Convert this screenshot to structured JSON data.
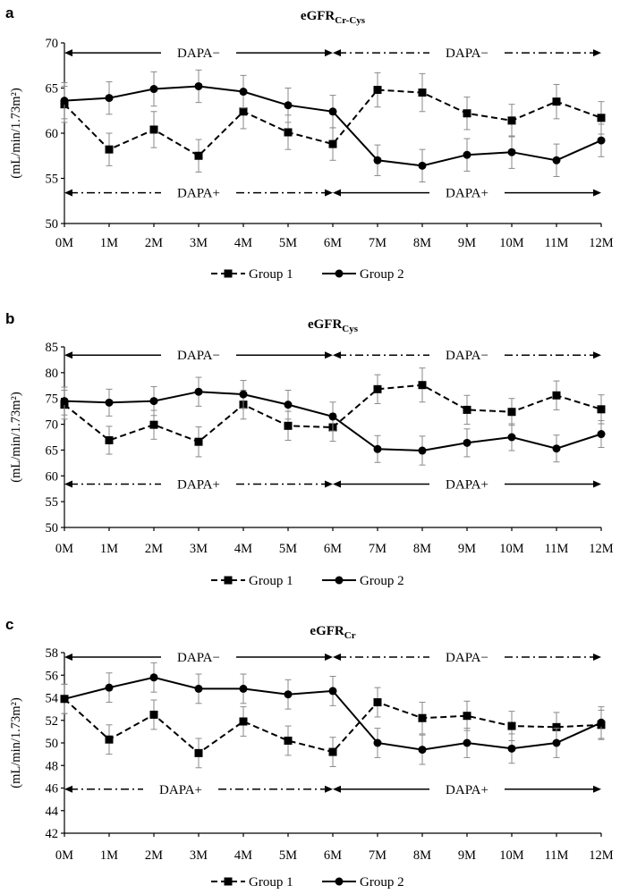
{
  "chart_data": [
    {
      "panel": "a",
      "type": "line",
      "title_main": "eGFR",
      "title_sub": "Cr-Cys",
      "ylabel": "(mL/min/1.73m²)",
      "ylim": [
        50,
        70
      ],
      "yticks": [
        "50",
        "55",
        "60",
        "65",
        "70"
      ],
      "categories": [
        "0M",
        "1M",
        "2M",
        "3M",
        "4M",
        "5M",
        "6M",
        "7M",
        "8M",
        "9M",
        "10M",
        "11M",
        "12M"
      ],
      "series": [
        {
          "name": "Group 1",
          "marker": "square",
          "line": "dashed",
          "values": [
            63.2,
            58.2,
            60.4,
            57.5,
            62.4,
            60.1,
            58.8,
            64.8,
            64.5,
            62.2,
            61.4,
            63.5,
            61.7
          ],
          "errors": [
            2.0,
            1.8,
            2.0,
            1.8,
            1.9,
            1.9,
            1.8,
            1.9,
            2.1,
            1.8,
            1.8,
            1.9,
            1.8
          ]
        },
        {
          "name": "Group 2",
          "marker": "circle",
          "line": "solid",
          "values": [
            63.6,
            63.9,
            64.9,
            65.2,
            64.6,
            63.1,
            62.4,
            57.0,
            56.4,
            57.6,
            57.9,
            57.0,
            59.2
          ],
          "errors": [
            2.0,
            1.8,
            1.9,
            1.8,
            1.8,
            1.9,
            1.8,
            1.7,
            1.8,
            1.8,
            1.8,
            1.8,
            1.8
          ]
        }
      ],
      "phases": [
        {
          "label": "DAPA−",
          "row": "top",
          "from": 0,
          "to": 6,
          "style": "solid",
          "label_at": 3
        },
        {
          "label": "DAPA−",
          "row": "top",
          "from": 6,
          "to": 12,
          "style": "dashdot",
          "label_at": 9
        },
        {
          "label": "DAPA+",
          "row": "bottom",
          "from": 0,
          "to": 6,
          "style": "dashdot",
          "label_at": 3
        },
        {
          "label": "DAPA+",
          "row": "bottom",
          "from": 6,
          "to": 12,
          "style": "solid",
          "label_at": 9
        }
      ],
      "phase_rows": {
        "top": 68.9,
        "bottom": 53.4
      }
    },
    {
      "panel": "b",
      "type": "line",
      "title_main": "eGFR",
      "title_sub": "Cys",
      "ylabel": "(mL/min/1.73m²)",
      "ylim": [
        50,
        85
      ],
      "yticks": [
        "50",
        "55",
        "60",
        "65",
        "70",
        "75",
        "80",
        "85"
      ],
      "categories": [
        "0M",
        "1M",
        "2M",
        "3M",
        "4M",
        "5M",
        "6M",
        "7M",
        "8M",
        "9M",
        "10M",
        "11M",
        "12M"
      ],
      "series": [
        {
          "name": "Group 1",
          "marker": "square",
          "line": "dashed",
          "values": [
            73.8,
            66.9,
            69.9,
            66.6,
            73.8,
            69.7,
            69.4,
            76.8,
            77.6,
            72.8,
            72.4,
            75.6,
            72.9
          ],
          "errors": [
            2.8,
            2.7,
            2.8,
            2.9,
            2.8,
            2.8,
            2.7,
            2.8,
            3.3,
            2.8,
            2.6,
            2.8,
            2.8
          ]
        },
        {
          "name": "Group 2",
          "marker": "circle",
          "line": "solid",
          "values": [
            74.5,
            74.2,
            74.5,
            76.3,
            75.8,
            73.8,
            71.5,
            65.2,
            64.9,
            66.4,
            67.5,
            65.3,
            68.1
          ],
          "errors": [
            2.7,
            2.6,
            2.8,
            2.8,
            2.7,
            2.8,
            2.8,
            2.6,
            2.8,
            2.7,
            2.6,
            2.6,
            2.6
          ]
        }
      ],
      "phases": [
        {
          "label": "DAPA−",
          "row": "top",
          "from": 0,
          "to": 6,
          "style": "solid",
          "label_at": 3
        },
        {
          "label": "DAPA−",
          "row": "top",
          "from": 6,
          "to": 12,
          "style": "dashdot",
          "label_at": 9
        },
        {
          "label": "DAPA+",
          "row": "bottom",
          "from": 0,
          "to": 6,
          "style": "dashdot",
          "label_at": 3
        },
        {
          "label": "DAPA+",
          "row": "bottom",
          "from": 6,
          "to": 12,
          "style": "solid",
          "label_at": 9
        }
      ],
      "phase_rows": {
        "top": 83.4,
        "bottom": 58.4
      }
    },
    {
      "panel": "c",
      "type": "line",
      "title_main": "eGFR",
      "title_sub": "Cr",
      "ylabel": "(mL/min/1.73m²)",
      "ylim": [
        42,
        58
      ],
      "yticks": [
        "42",
        "44",
        "46",
        "48",
        "50",
        "52",
        "54",
        "56",
        "58"
      ],
      "categories": [
        "0M",
        "1M",
        "2M",
        "3M",
        "4M",
        "5M",
        "6M",
        "7M",
        "8M",
        "9M",
        "10M",
        "11M",
        "12M"
      ],
      "series": [
        {
          "name": "Group 1",
          "marker": "square",
          "line": "dashed",
          "values": [
            53.9,
            50.3,
            52.5,
            49.1,
            51.9,
            50.2,
            49.2,
            53.6,
            52.2,
            52.4,
            51.5,
            51.4,
            51.6
          ],
          "errors": [
            1.3,
            1.3,
            1.3,
            1.3,
            1.3,
            1.3,
            1.3,
            1.3,
            1.4,
            1.3,
            1.3,
            1.3,
            1.3
          ]
        },
        {
          "name": "Group 2",
          "marker": "circle",
          "line": "solid",
          "values": [
            53.9,
            54.9,
            55.8,
            54.8,
            54.8,
            54.3,
            54.6,
            50.0,
            49.4,
            50.0,
            49.5,
            50.0,
            51.8
          ],
          "errors": [
            1.3,
            1.3,
            1.3,
            1.3,
            1.3,
            1.3,
            1.3,
            1.3,
            1.3,
            1.3,
            1.3,
            1.3,
            1.4
          ]
        }
      ],
      "phases": [
        {
          "label": "DAPA−",
          "row": "top",
          "from": 0,
          "to": 6,
          "style": "solid",
          "label_at": 3
        },
        {
          "label": "DAPA−",
          "row": "top",
          "from": 6,
          "to": 12,
          "style": "dashdot",
          "label_at": 9
        },
        {
          "label": "DAPA+",
          "row": "bottom",
          "from": 0,
          "to": 6,
          "style": "dashdot",
          "label_at": 2.6
        },
        {
          "label": "DAPA+",
          "row": "bottom",
          "from": 6,
          "to": 12,
          "style": "solid",
          "label_at": 9
        }
      ],
      "phase_rows": {
        "top": 57.6,
        "bottom": 45.9
      }
    }
  ]
}
